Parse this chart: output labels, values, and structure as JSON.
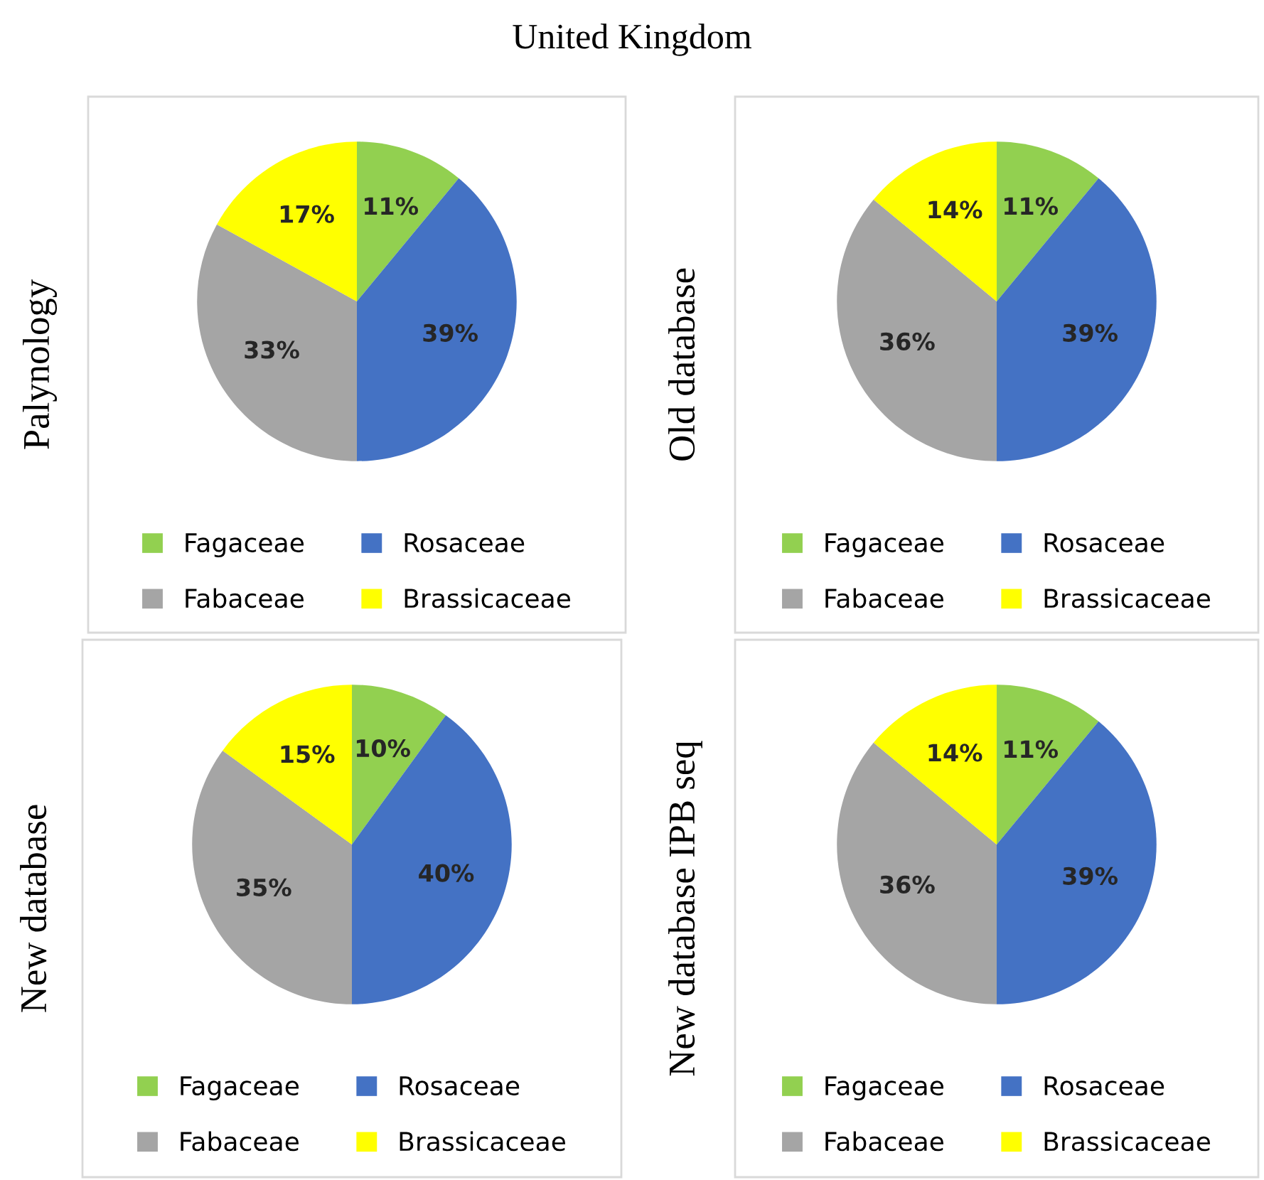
{
  "chart_data": [
    {
      "type": "pie",
      "title": "United Kingdom",
      "ylabel": "Palynology",
      "categories": [
        "Fagaceae",
        "Rosaceae",
        "Fabaceae",
        "Brassicaceae"
      ],
      "values": [
        11,
        39,
        33,
        17
      ],
      "value_labels": [
        "11%",
        "39%",
        "33%",
        "17%"
      ],
      "colors": [
        "#92d050",
        "#4472c4",
        "#a5a5a5",
        "#ffff00"
      ],
      "legend": "bottom"
    },
    {
      "type": "pie",
      "ylabel": "Old database",
      "categories": [
        "Fagaceae",
        "Rosaceae",
        "Fabaceae",
        "Brassicaceae"
      ],
      "values": [
        11,
        39,
        36,
        14
      ],
      "value_labels": [
        "11%",
        "39%",
        "36%",
        "14%"
      ],
      "colors": [
        "#92d050",
        "#4472c4",
        "#a5a5a5",
        "#ffff00"
      ],
      "legend": "bottom"
    },
    {
      "type": "pie",
      "ylabel": "New database",
      "categories": [
        "Fagaceae",
        "Rosaceae",
        "Fabaceae",
        "Brassicaceae"
      ],
      "values": [
        10,
        40,
        35,
        15
      ],
      "value_labels": [
        "10%",
        "40%",
        "35%",
        "15%"
      ],
      "colors": [
        "#92d050",
        "#4472c4",
        "#a5a5a5",
        "#ffff00"
      ],
      "legend": "bottom"
    },
    {
      "type": "pie",
      "ylabel": "New database IPB seq",
      "categories": [
        "Fagaceae",
        "Rosaceae",
        "Fabaceae",
        "Brassicaceae"
      ],
      "values": [
        11,
        39,
        36,
        14
      ],
      "value_labels": [
        "11%",
        "39%",
        "36%",
        "14%"
      ],
      "colors": [
        "#92d050",
        "#4472c4",
        "#a5a5a5",
        "#ffff00"
      ],
      "legend": "bottom"
    }
  ]
}
